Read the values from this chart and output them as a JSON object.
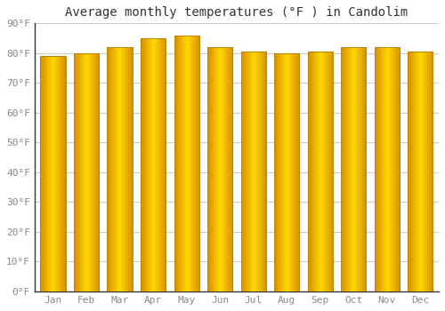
{
  "title": "Average monthly temperatures (°F ) in Candolim",
  "months": [
    "Jan",
    "Feb",
    "Mar",
    "Apr",
    "May",
    "Jun",
    "Jul",
    "Aug",
    "Sep",
    "Oct",
    "Nov",
    "Dec"
  ],
  "values": [
    79,
    80,
    82,
    85,
    86,
    82,
    80.5,
    80,
    80.5,
    82,
    82,
    80.5
  ],
  "bar_color_main": "#FFA500",
  "bar_color_light": "#FFD070",
  "bar_color_dark": "#CC7700",
  "bar_color_edge": "#B8860B",
  "background_color": "#FFFFFF",
  "grid_color": "#CCCCCC",
  "ylim": [
    0,
    90
  ],
  "ytick_step": 10,
  "title_fontsize": 10,
  "tick_fontsize": 8,
  "tick_color": "#888888",
  "spine_color": "#333333"
}
